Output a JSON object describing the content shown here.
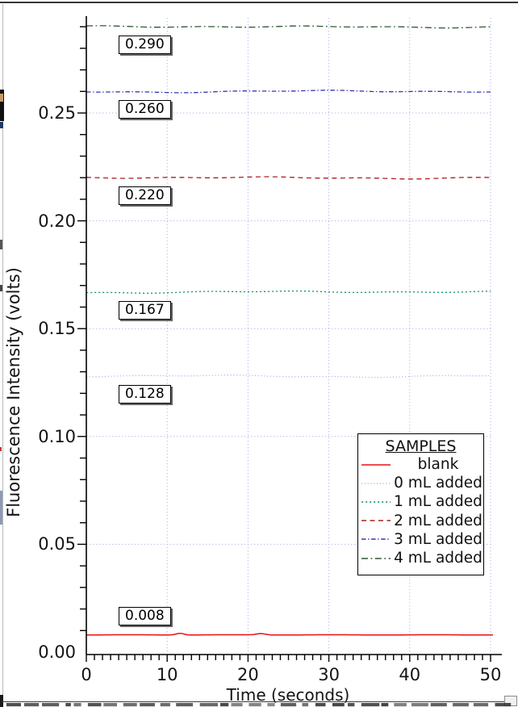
{
  "chart_data": {
    "type": "line",
    "title": "",
    "xlabel": "Time (seconds)",
    "ylabel": "Fluorescence Intensity (volts)",
    "xlim": [
      0,
      50
    ],
    "ylim": [
      0,
      0.295
    ],
    "x_ticks": [
      "0",
      "10",
      "20",
      "30",
      "40",
      "50"
    ],
    "y_ticks": [
      "0.00",
      "0.05",
      "0.10",
      "0.15",
      "0.20",
      "0.25"
    ],
    "grid": true,
    "grid_color": "#b2b6e8",
    "legend_title": "SAMPLES",
    "legend_position": "lower right",
    "series": [
      {
        "label": "blank",
        "value": 0.008,
        "annotation": "0.008",
        "color": "#e81010",
        "dash": "",
        "style": "solid"
      },
      {
        "label": "0 mL added",
        "value": 0.128,
        "annotation": "0.128",
        "color": "#b6b6ec",
        "dash": "1.2 2.6",
        "style": "dotted"
      },
      {
        "label": "1 mL added",
        "value": 0.167,
        "annotation": "0.167",
        "color": "#179e5e",
        "dash": "2.2 2.8",
        "style": "dotted"
      },
      {
        "label": "2 mL added",
        "value": 0.22,
        "annotation": "0.220",
        "color": "#ae1f1f",
        "dash": "6 4.5",
        "style": "dashed"
      },
      {
        "label": "3 mL added",
        "value": 0.26,
        "annotation": "0.260",
        "color": "#3535b5",
        "dash": "5.5 2.6 1.4 2.6",
        "style": "dashdot"
      },
      {
        "label": "4 mL added",
        "value": 0.29,
        "annotation": "0.290",
        "color": "#2d5a35",
        "dash": "8 3.5 1.8 3.5",
        "style": "dashdot"
      }
    ]
  }
}
